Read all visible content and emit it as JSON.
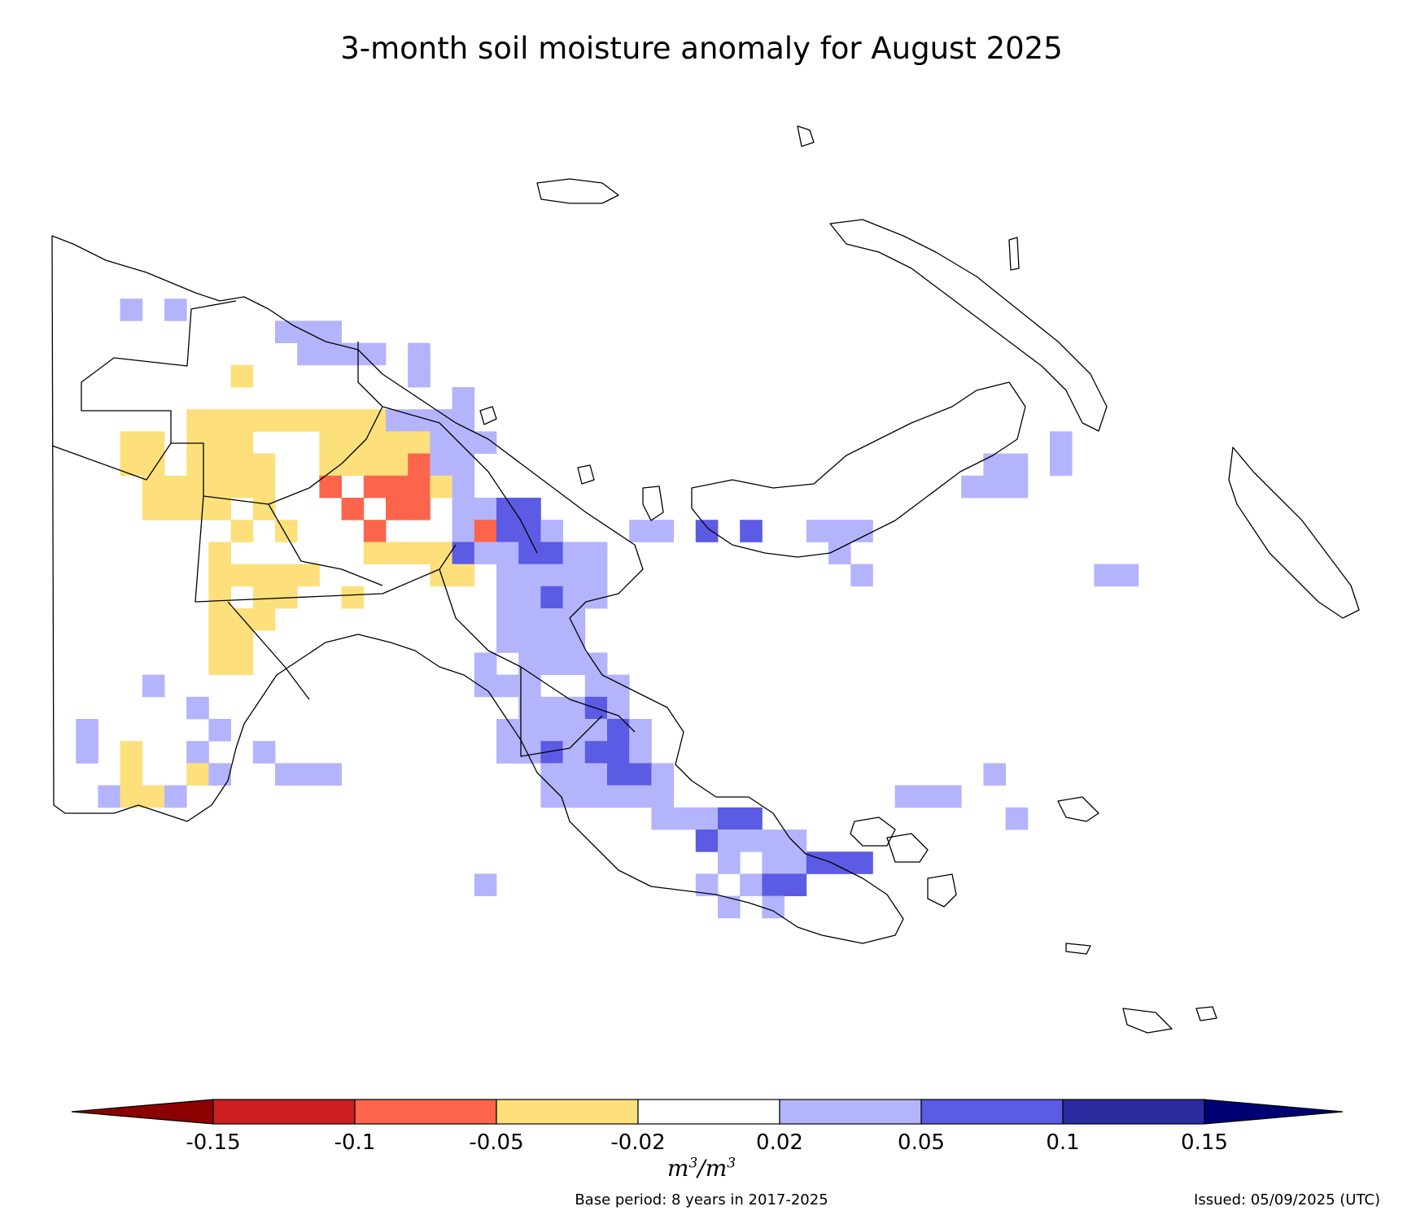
{
  "title": "3-month soil moisture anomaly for August 2025",
  "legend": {
    "ticks": [
      "-0.15",
      "-0.1",
      "-0.05",
      "-0.02",
      "0.02",
      "0.05",
      "0.1",
      "0.15"
    ],
    "unit_base": "m",
    "unit_exp": "3",
    "unit_sep": "/",
    "colors": [
      "#8b0000",
      "#cd1f1f",
      "#fc654b",
      "#fde07c",
      "#ffffff",
      "#b4b4fd",
      "#5b5be3",
      "#2b2ba0",
      "#000075"
    ]
  },
  "footer": {
    "base_period": "Base period: 8 years in 2017-2025",
    "issued": "Issued: 05/09/2025 (UTC)"
  },
  "map": {
    "region": "Papua New Guinea",
    "category_colors": {
      "Y": "#fde07c",
      "O": "#fc654b",
      "L": "#b4b4fd",
      "B": "#5b5be3"
    },
    "grid_rows": [
      "........................................................",
      "...L.L..................................................",
      "..........LLL...........................................",
      "...........LLLL.L.......................................",
      "........Y.......L.......................................",
      "..................L.....................................",
      "......YYYYYYYYYLLLL.....................................",
      "...YY.YYY...YYYYYLLL.........................L..........",
      "...YY.YYYY..YYYYOLL.......................LL.L..........",
      "....YYYYYY..O.OOOYL......................LLL............",
      "....YYYY.Y...O.OO.LLBB..................................",
      "........Y.Y...O...LOBBL...LL.B.B..LLL...................",
      ".......Y......YYYYBLLBBLL..........L.....................",
      ".......YYYYY.....YY.LLLLL...........L..........LL.......",
      ".......Y.YY..Y......LLBLL...............................",
      ".......YYY..........LLLL................................",
      ".......YY...........LLLL................................",
      ".......YY..........L.LLLL...............................",
      "....L..............LLL..LL..............................",
      "......L..............LLLBL..............................",
      ".L.....L............LLLLLBL.............................",
      ".L.Y..L..L..........LLBLBBL.............................",
      "...Y..YL..LLL.........LLLBBL..............L.............",
      "..LYYL................LLLLLL..........LLL...............",
      "...........................LLLBB...........L...........",
      ".............................BLLLL......................",
      "..............................L.LLBBB...................",
      "...................L.........L.LBB......................",
      "..............................L.L.......................",
      "........................................................"
    ]
  }
}
